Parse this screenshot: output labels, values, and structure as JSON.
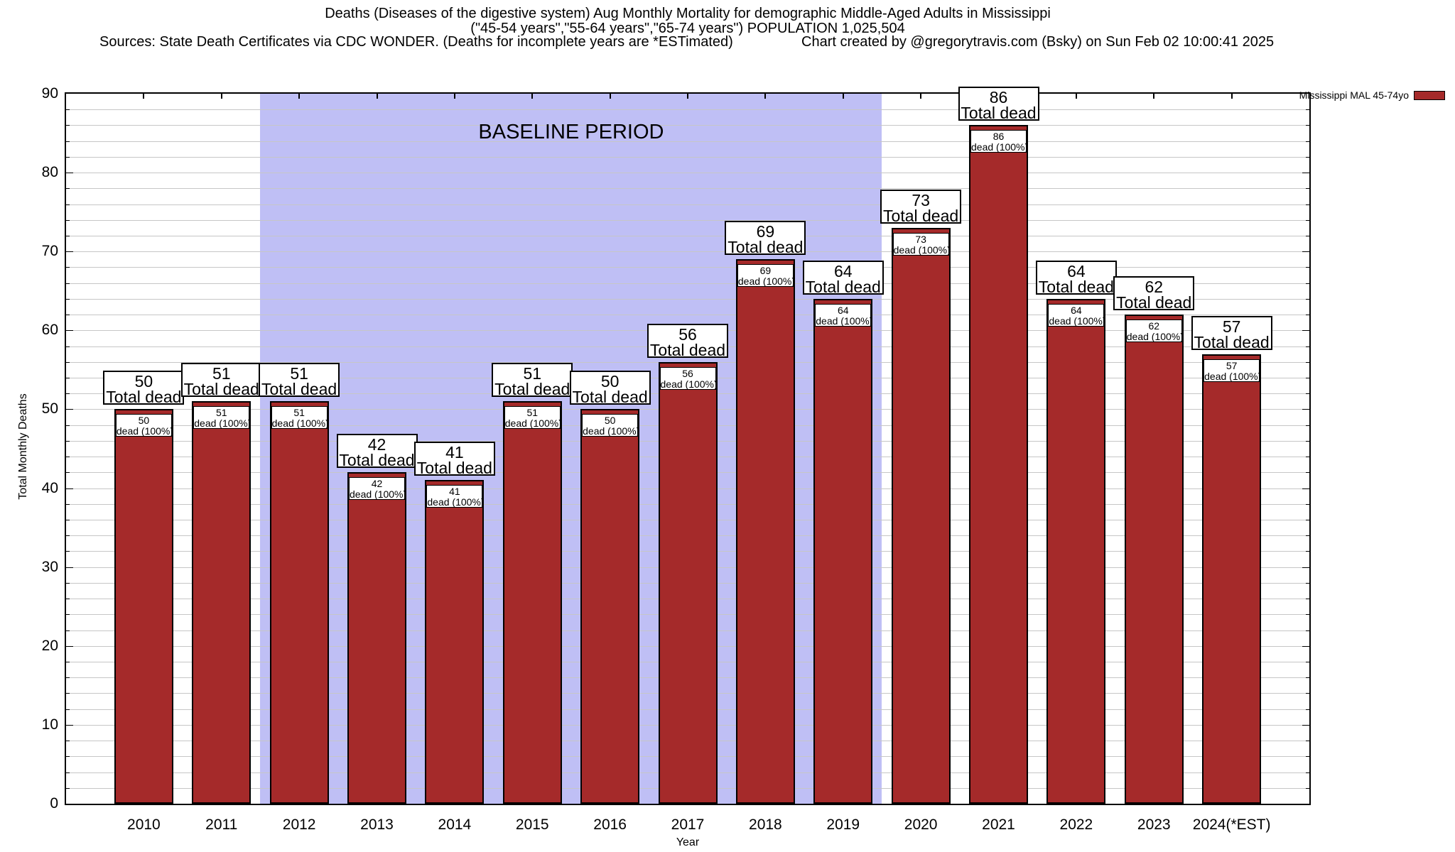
{
  "header": {
    "sources_line": "Sources: State Death Certificates via CDC WONDER. (Deaths for incomplete years are *ESTimated)",
    "credit_line": "Chart created by @gregorytravis.com (Bsky) on Sun Feb 02 10:00:41 2025"
  },
  "legend": {
    "label": "Mississippi MAL 45-74yo",
    "swatch_color": "#a52a2a",
    "position": "top-right-outside"
  },
  "chart_data": {
    "type": "bar",
    "title": "Deaths (Diseases of the digestive system) Aug Monthly Mortality for demographic Middle-Aged Adults in Mississippi",
    "subtitle": "(\"45-54 years\",\"55-64 years\",\"65-74 years\") POPULATION 1,025,504",
    "xlabel": "Year",
    "ylabel": "Total Monthly Deaths",
    "ylim": [
      0,
      90
    ],
    "ytick_step": 10,
    "minor_grid_step": 2,
    "grid": true,
    "categories": [
      "2010",
      "2011",
      "2012",
      "2013",
      "2014",
      "2015",
      "2016",
      "2017",
      "2018",
      "2019",
      "2020",
      "2021",
      "2022",
      "2023",
      "2024(*EST)"
    ],
    "series": [
      {
        "name": "Mississippi MAL 45-74yo",
        "values": [
          50,
          51,
          51,
          42,
          41,
          51,
          50,
          56,
          69,
          64,
          73,
          86,
          64,
          62,
          57
        ]
      }
    ],
    "bar_color": "#a52a2a",
    "bar_border_color": "#000000",
    "gridline_color": "#c6c6c6",
    "bar_top_label_suffix": "Total dead",
    "bar_inner_label_suffix": "dead (100%)",
    "annotations": [
      {
        "text": "BASELINE PERIOD",
        "x_range": [
          "2012",
          "2019"
        ],
        "band_color": "#bfbff5"
      }
    ]
  }
}
